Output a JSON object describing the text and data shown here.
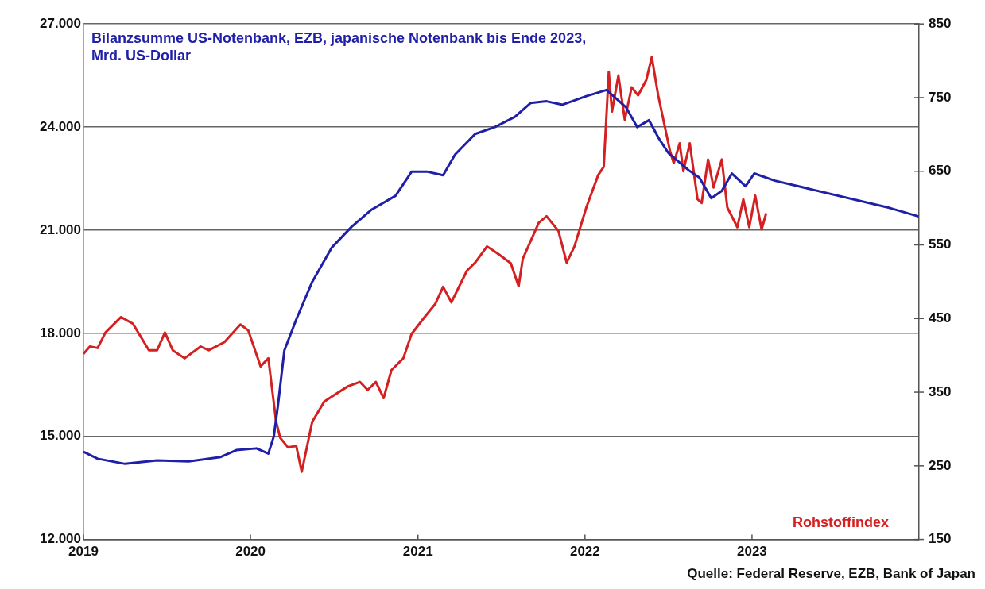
{
  "chart_data": {
    "type": "line",
    "xlim": [
      "2019",
      "2024"
    ],
    "xticks": [
      "2019",
      "2020",
      "2021",
      "2022",
      "2023"
    ],
    "ylim": [
      12000,
      27000
    ],
    "yticks": [
      {
        "value": 12000,
        "label": "12.000"
      },
      {
        "value": 15000,
        "label": "15.000"
      },
      {
        "value": 18000,
        "label": "18.000"
      },
      {
        "value": 21000,
        "label": "21.000"
      },
      {
        "value": 24000,
        "label": "24.000"
      },
      {
        "value": 27000,
        "label": "27.000"
      }
    ],
    "y2lim": [
      150,
      850
    ],
    "y2ticks": [
      150,
      250,
      350,
      450,
      550,
      650,
      750,
      850
    ],
    "grid": "y",
    "legend": false,
    "marker": "none",
    "line_style": "solid",
    "series": [
      {
        "name": "Bilanzsumme US-Notenbank, EZB, japanische Notenbank bis Ende 2023, Mrd. US-Dollar",
        "color": "#1f1fa8",
        "x": [
          "2019-01-01",
          "2019-02-01",
          "2019-04-02",
          "2019-06-11",
          "2019-08-19",
          "2019-10-28",
          "2019-12-01",
          "2020-01-14",
          "2020-02-09",
          "2020-02-21",
          "2020-03-01",
          "2020-03-15",
          "2020-04-10",
          "2020-05-15",
          "2020-06-27",
          "2020-08-09",
          "2020-09-22",
          "2020-11-13",
          "2020-12-18",
          "2021-01-22",
          "2021-02-25",
          "2021-03-23",
          "2021-05-06",
          "2021-06-18",
          "2021-08-01",
          "2021-09-04",
          "2021-10-09",
          "2021-11-13",
          "2022-01-04",
          "2022-02-17",
          "2022-04-01",
          "2022-04-25",
          "2022-05-21",
          "2022-06-10",
          "2022-07-02",
          "2022-08-16",
          "2022-09-08",
          "2022-10-04",
          "2022-10-27",
          "2022-11-18",
          "2022-12-18",
          "2023-01-06",
          "2023-02-20",
          "2023-10-28",
          "2023-12-31"
        ],
        "values": [
          14550,
          14350,
          14200,
          14300,
          14270,
          14400,
          14600,
          14650,
          14500,
          15000,
          15900,
          17500,
          18400,
          19500,
          20500,
          21100,
          21600,
          22000,
          22700,
          22700,
          22600,
          23200,
          23800,
          24000,
          24300,
          24700,
          24750,
          24650,
          24900,
          25080,
          24570,
          24000,
          24200,
          23700,
          23250,
          22740,
          22530,
          21930,
          22140,
          22650,
          22280,
          22650,
          22440,
          21650,
          21400
        ]
      },
      {
        "name": "Rohstoffindex",
        "color": "#d42020",
        "axis": "y2",
        "x": [
          "2019-01-01",
          "2019-01-15",
          "2019-02-01",
          "2019-02-18",
          "2019-03-24",
          "2019-04-19",
          "2019-05-24",
          "2019-06-11",
          "2019-06-28",
          "2019-07-15",
          "2019-08-10",
          "2019-09-14",
          "2019-10-02",
          "2019-11-05",
          "2019-12-10",
          "2019-12-27",
          "2020-01-23",
          "2020-02-09",
          "2020-02-26",
          "2020-03-06",
          "2020-03-23",
          "2020-04-10",
          "2020-04-22",
          "2020-05-15",
          "2020-06-10",
          "2020-06-27",
          "2020-08-01",
          "2020-08-27",
          "2020-09-13",
          "2020-10-01",
          "2020-10-18",
          "2020-11-04",
          "2020-11-30",
          "2020-12-18",
          "2021-01-13",
          "2021-02-08",
          "2021-02-25",
          "2021-03-15",
          "2021-04-18",
          "2021-05-06",
          "2021-06-01",
          "2021-06-27",
          "2021-07-23",
          "2021-08-09",
          "2021-08-18",
          "2021-09-22",
          "2021-10-09",
          "2021-11-04",
          "2021-11-22",
          "2021-12-09",
          "2022-01-04",
          "2022-01-30",
          "2022-02-11",
          "2022-02-22",
          "2022-03-01",
          "2022-03-15",
          "2022-03-29",
          "2022-04-13",
          "2022-04-27",
          "2022-05-15",
          "2022-05-27",
          "2022-06-10",
          "2022-07-06",
          "2022-07-14",
          "2022-07-27",
          "2022-08-04",
          "2022-08-18",
          "2022-09-04",
          "2022-09-13",
          "2022-09-27",
          "2022-10-09",
          "2022-10-27",
          "2022-11-08",
          "2022-11-30",
          "2022-12-13",
          "2022-12-26",
          "2023-01-08",
          "2023-01-22",
          "2023-02-01"
        ],
        "values": [
          402,
          412,
          410,
          431,
          452,
          443,
          407,
          407,
          431,
          407,
          396,
          412,
          407,
          418,
          442,
          434,
          385,
          396,
          310,
          288,
          275,
          277,
          242,
          310,
          337,
          344,
          358,
          364,
          353,
          364,
          342,
          380,
          396,
          429,
          450,
          470,
          493,
          472,
          515,
          526,
          548,
          537,
          525,
          494,
          531,
          580,
          589,
          569,
          526,
          548,
          601,
          645,
          656,
          785,
          731,
          780,
          720,
          764,
          753,
          774,
          805,
          753,
          677,
          661,
          688,
          650,
          688,
          612,
          607,
          666,
          628,
          666,
          601,
          574,
          612,
          574,
          617,
          571,
          593
        ]
      }
    ],
    "annotations": [
      "Quelle: Federal Reserve, EZB, Bank of Japan"
    ]
  }
}
